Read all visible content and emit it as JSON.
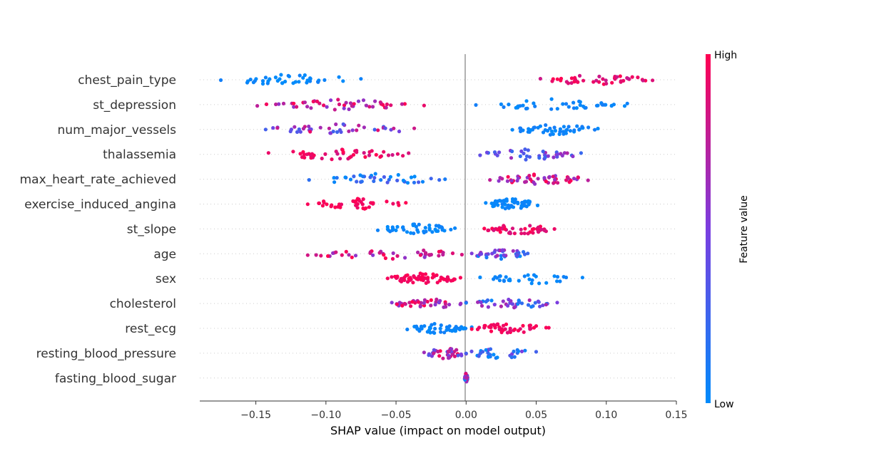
{
  "chart_data": {
    "type": "scatter",
    "subtype": "shap-beeswarm",
    "title": "",
    "xlabel": "SHAP value (impact on model output)",
    "xlim": [
      -0.19,
      0.15
    ],
    "xticks": [
      -0.15,
      -0.1,
      -0.05,
      0.0,
      0.05,
      0.1,
      0.15
    ],
    "xtick_labels": [
      "−0.15",
      "−0.10",
      "−0.05",
      "0.00",
      "0.05",
      "0.10",
      "0.15"
    ],
    "zero_line": true,
    "colors": {
      "low": "#008bfb",
      "mid": "#7a3ee0",
      "high": "#ff0052",
      "zero_line": "#999999",
      "gridline": "#cccccc"
    },
    "colorbar": {
      "label": "Feature value",
      "high_label": "High",
      "low_label": "Low"
    },
    "features": [
      {
        "name": "chest_pain_type",
        "clusters": [
          {
            "from": -0.175,
            "to": -0.075,
            "count": 40,
            "value": 0.0,
            "spread": 0.08
          },
          {
            "from": 0.053,
            "to": 0.133,
            "count": 45,
            "value": 0.9,
            "spread": 0.12
          }
        ]
      },
      {
        "name": "st_depression",
        "clusters": [
          {
            "from": -0.149,
            "to": -0.03,
            "count": 48,
            "value": 0.78,
            "spread": 0.25
          },
          {
            "from": 0.007,
            "to": 0.115,
            "count": 42,
            "value": 0.04,
            "spread": 0.06
          }
        ]
      },
      {
        "name": "num_major_vessels",
        "clusters": [
          {
            "from": -0.143,
            "to": -0.037,
            "count": 42,
            "value": 0.6,
            "spread": 0.35
          },
          {
            "from": 0.033,
            "to": 0.094,
            "count": 45,
            "value": 0.04,
            "spread": 0.06
          }
        ]
      },
      {
        "name": "thalassemia",
        "clusters": [
          {
            "from": -0.141,
            "to": -0.041,
            "count": 45,
            "value": 0.92,
            "spread": 0.1
          },
          {
            "from": 0.01,
            "to": 0.082,
            "count": 40,
            "value": 0.45,
            "spread": 0.25
          }
        ]
      },
      {
        "name": "max_heart_rate_achieved",
        "clusters": [
          {
            "from": -0.112,
            "to": -0.015,
            "count": 38,
            "value": 0.12,
            "spread": 0.25
          },
          {
            "from": 0.017,
            "to": 0.087,
            "count": 50,
            "value": 0.8,
            "spread": 0.25
          }
        ]
      },
      {
        "name": "exercise_induced_angina",
        "clusters": [
          {
            "from": -0.113,
            "to": -0.043,
            "count": 40,
            "value": 0.97,
            "spread": 0.05
          },
          {
            "from": 0.014,
            "to": 0.051,
            "count": 55,
            "value": 0.03,
            "spread": 0.04
          }
        ]
      },
      {
        "name": "st_slope",
        "clusters": [
          {
            "from": -0.063,
            "to": -0.008,
            "count": 45,
            "value": 0.03,
            "spread": 0.05
          },
          {
            "from": 0.013,
            "to": 0.063,
            "count": 45,
            "value": 0.93,
            "spread": 0.1
          }
        ]
      },
      {
        "name": "age",
        "clusters": [
          {
            "from": -0.113,
            "to": -0.003,
            "count": 45,
            "value": 0.8,
            "spread": 0.25
          },
          {
            "from": 0.004,
            "to": 0.044,
            "count": 38,
            "value": 0.35,
            "spread": 0.35
          }
        ]
      },
      {
        "name": "sex",
        "clusters": [
          {
            "from": -0.056,
            "to": -0.004,
            "count": 60,
            "value": 0.97,
            "spread": 0.05
          },
          {
            "from": 0.01,
            "to": 0.083,
            "count": 30,
            "value": 0.03,
            "spread": 0.04
          }
        ]
      },
      {
        "name": "cholesterol",
        "clusters": [
          {
            "from": -0.053,
            "to": 0.0,
            "count": 40,
            "value": 0.75,
            "spread": 0.3
          },
          {
            "from": 0.0,
            "to": 0.065,
            "count": 40,
            "value": 0.35,
            "spread": 0.35
          }
        ]
      },
      {
        "name": "rest_ecg",
        "clusters": [
          {
            "from": -0.042,
            "to": 0.004,
            "count": 45,
            "value": 0.03,
            "spread": 0.05
          },
          {
            "from": 0.004,
            "to": 0.059,
            "count": 45,
            "value": 0.95,
            "spread": 0.08
          }
        ]
      },
      {
        "name": "resting_blood_pressure",
        "clusters": [
          {
            "from": -0.03,
            "to": 0.0,
            "count": 38,
            "value": 0.65,
            "spread": 0.35
          },
          {
            "from": 0.0,
            "to": 0.05,
            "count": 32,
            "value": 0.25,
            "spread": 0.3
          }
        ]
      },
      {
        "name": "fasting_blood_sugar",
        "clusters": [
          {
            "from": -0.001,
            "to": 0.001,
            "count": 40,
            "value": 0.5,
            "spread": 0.5
          }
        ]
      }
    ]
  }
}
